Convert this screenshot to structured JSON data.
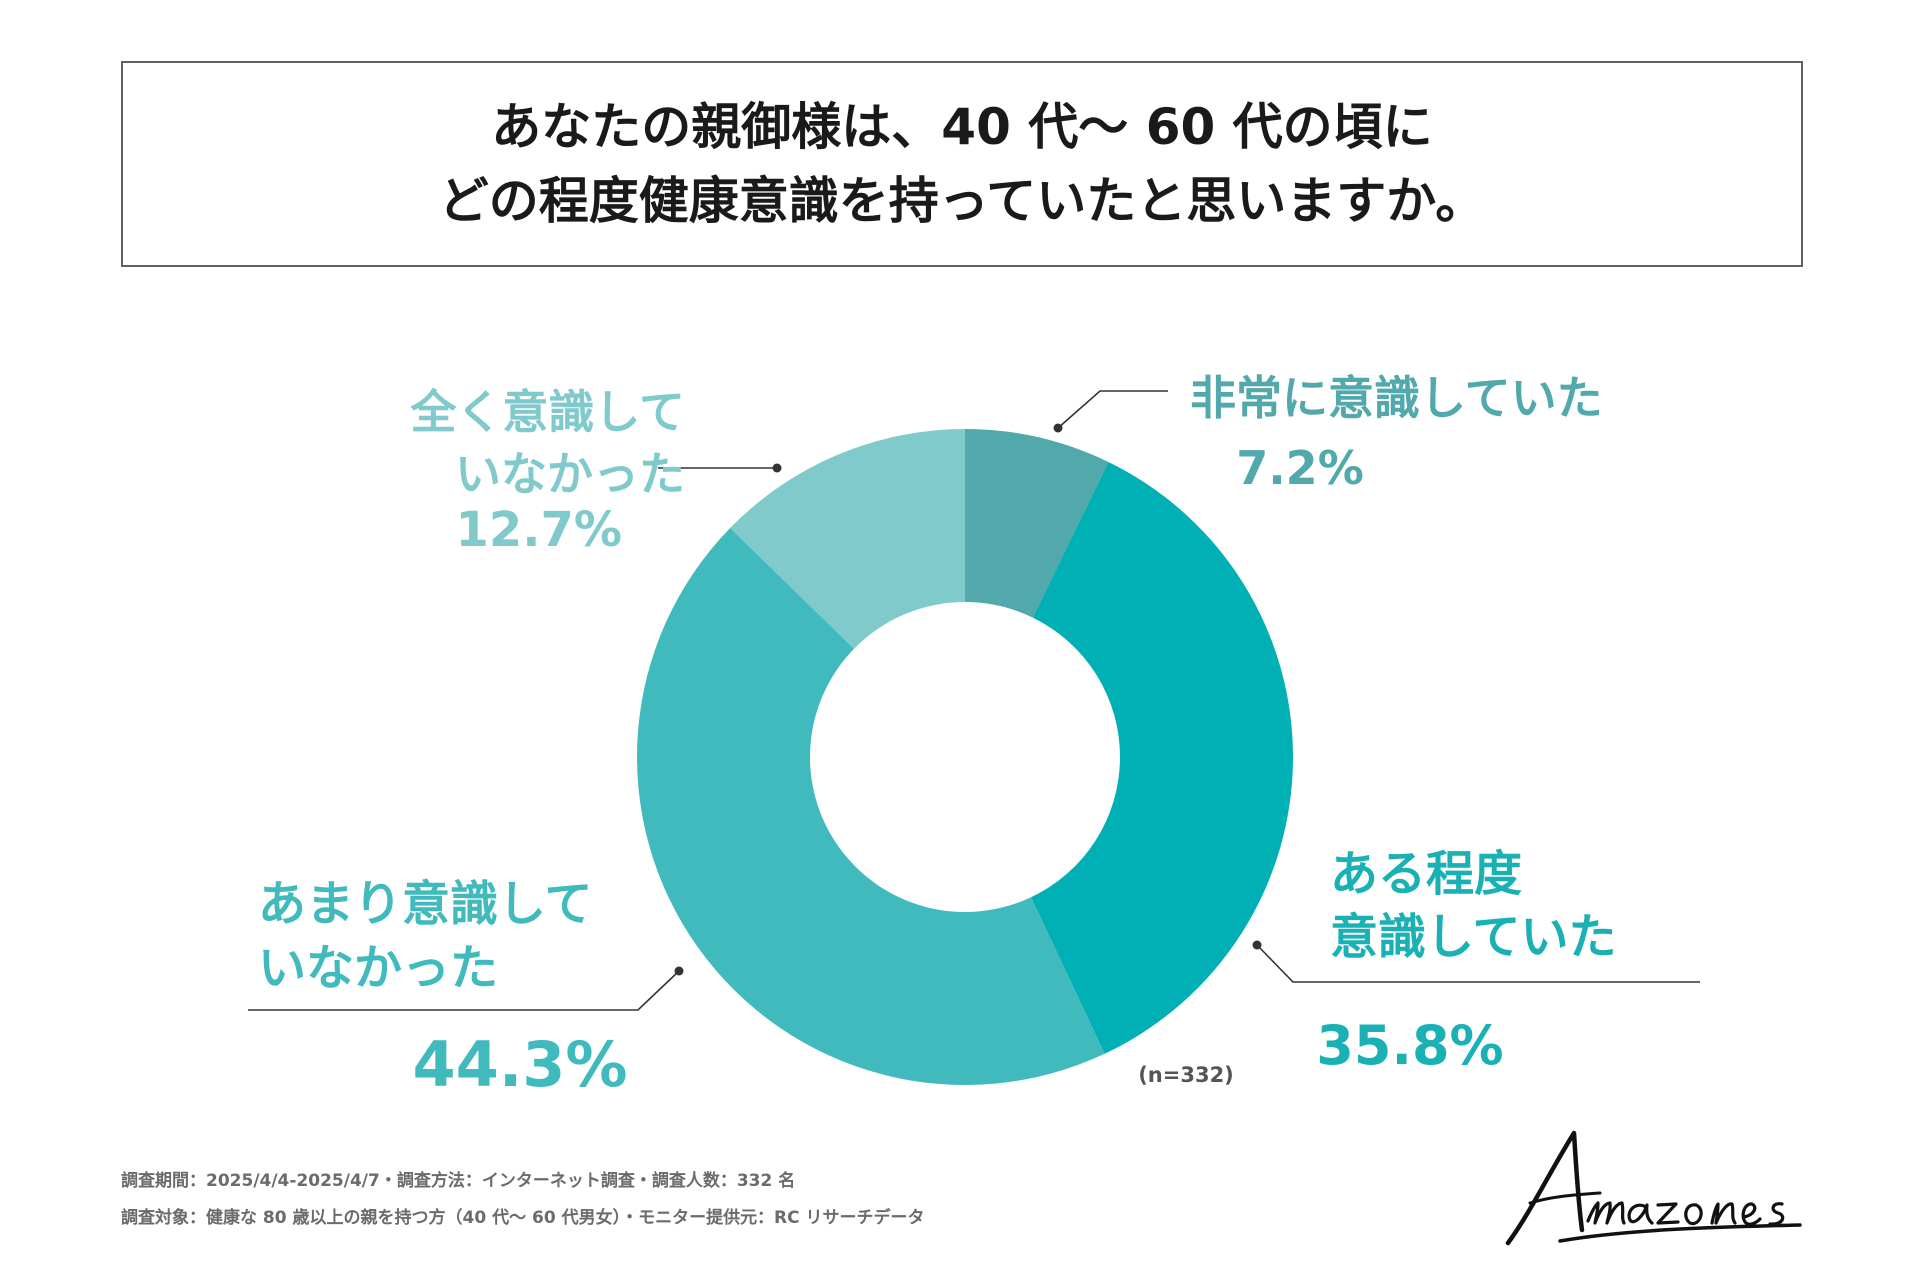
{
  "title": {
    "line1": "あなたの親御様は、40 代〜 60 代の頃に",
    "line2": "どの程度健康意識を持っていたと思いますか。"
  },
  "chart_data": {
    "type": "pie",
    "donut": true,
    "title": "あなたの親御様は、40 代〜 60 代の頃に どの程度健康意識を持っていたと思いますか。",
    "sample_size": "(n=332)",
    "slices": [
      {
        "label": "非常に意識していた",
        "value": 7.2,
        "value_label": "7.2%",
        "color": "#52a9ab"
      },
      {
        "label": "ある程度意識していた",
        "value": 35.8,
        "value_label": "35.8%",
        "color": "#00b0b5"
      },
      {
        "label": "あまり意識していなかった",
        "value": 44.3,
        "value_label": "44.3%",
        "color": "#41babe"
      },
      {
        "label": "全く意識していなかった",
        "value": 12.7,
        "value_label": "12.7%",
        "color": "#80cacc"
      }
    ],
    "label_lines": [
      [
        "非常に意識していた"
      ],
      [
        "ある程度",
        "意識していた"
      ],
      [
        "あまり意識して",
        "いなかった"
      ],
      [
        "全く意識して",
        "いなかった"
      ]
    ],
    "label_colors": [
      "#52a9ab",
      "#1ab1b5",
      "#41babe",
      "#80cacc"
    ]
  },
  "footer": {
    "line1": "調査期間：2025/4/4-2025/4/7・調査方法：インターネット調査・調査人数：332 名",
    "line2": "調査対象：健康な 80 歳以上の親を持つ方（40 代〜 60 代男女）・モニター提供元：RC リサーチデータ"
  },
  "logo": {
    "text": "Amazones"
  },
  "colors": {
    "leader_line": "#333333",
    "border": "#5f6366",
    "title_text": "#1a1a1a",
    "footer_text": "#6b6b6b"
  }
}
